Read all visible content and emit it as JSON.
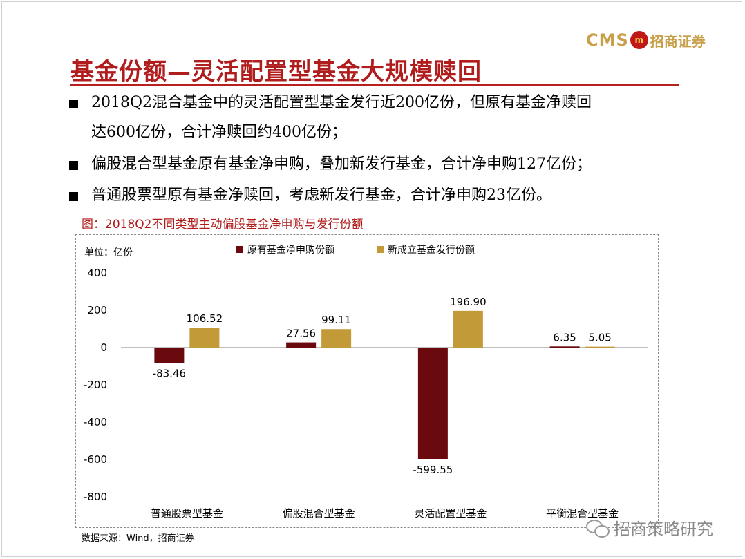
{
  "logo": {
    "brand_en": "CMS",
    "brand_mark": "m",
    "brand_cn": "招商证券"
  },
  "slide": {
    "title": "基金份额—灵活配置型基金大规模赎回",
    "bullets": [
      {
        "line1": "2018Q2混合基金中的灵活配置型基金发行近200亿份，但原有基金净赎回",
        "line2": "达600亿份，合计净赎回约400亿份；"
      },
      {
        "line1": "偏股混合型基金原有基金净申购，叠加新发行基金，合计净申购127亿份；"
      },
      {
        "line1": "普通股票型原有基金净赎回，考虑新发行基金，合计净申购23亿份。"
      }
    ]
  },
  "figure": {
    "title": "图：2018Q2不同类型主动偏股基金净申购与发行份额",
    "source": "数据来源：Wind，招商证券"
  },
  "watermark": {
    "text": "招商策略研究"
  },
  "chart_data": {
    "type": "bar",
    "unit_label": "单位：亿份",
    "categories": [
      "普通股票型基金",
      "偏股混合型基金",
      "灵活配置型基金",
      "平衡混合型基金"
    ],
    "series": [
      {
        "name": "原有基金净申购份额",
        "color": "#6b0a0e",
        "values": [
          -83.46,
          27.56,
          -599.55,
          6.35
        ]
      },
      {
        "name": "新成立基金发行份额",
        "color": "#c29a37",
        "values": [
          106.52,
          99.11,
          196.9,
          5.05
        ]
      }
    ],
    "data_labels": [
      [
        "-83.46",
        "27.56",
        "-599.55",
        "6.35"
      ],
      [
        "106.52",
        "99.11",
        "196.90",
        "5.05"
      ]
    ],
    "ylim": [
      -800,
      400
    ],
    "yticks": [
      400,
      200,
      0,
      -200,
      -400,
      -600,
      -800
    ],
    "legend_position": "top",
    "grid": false
  }
}
